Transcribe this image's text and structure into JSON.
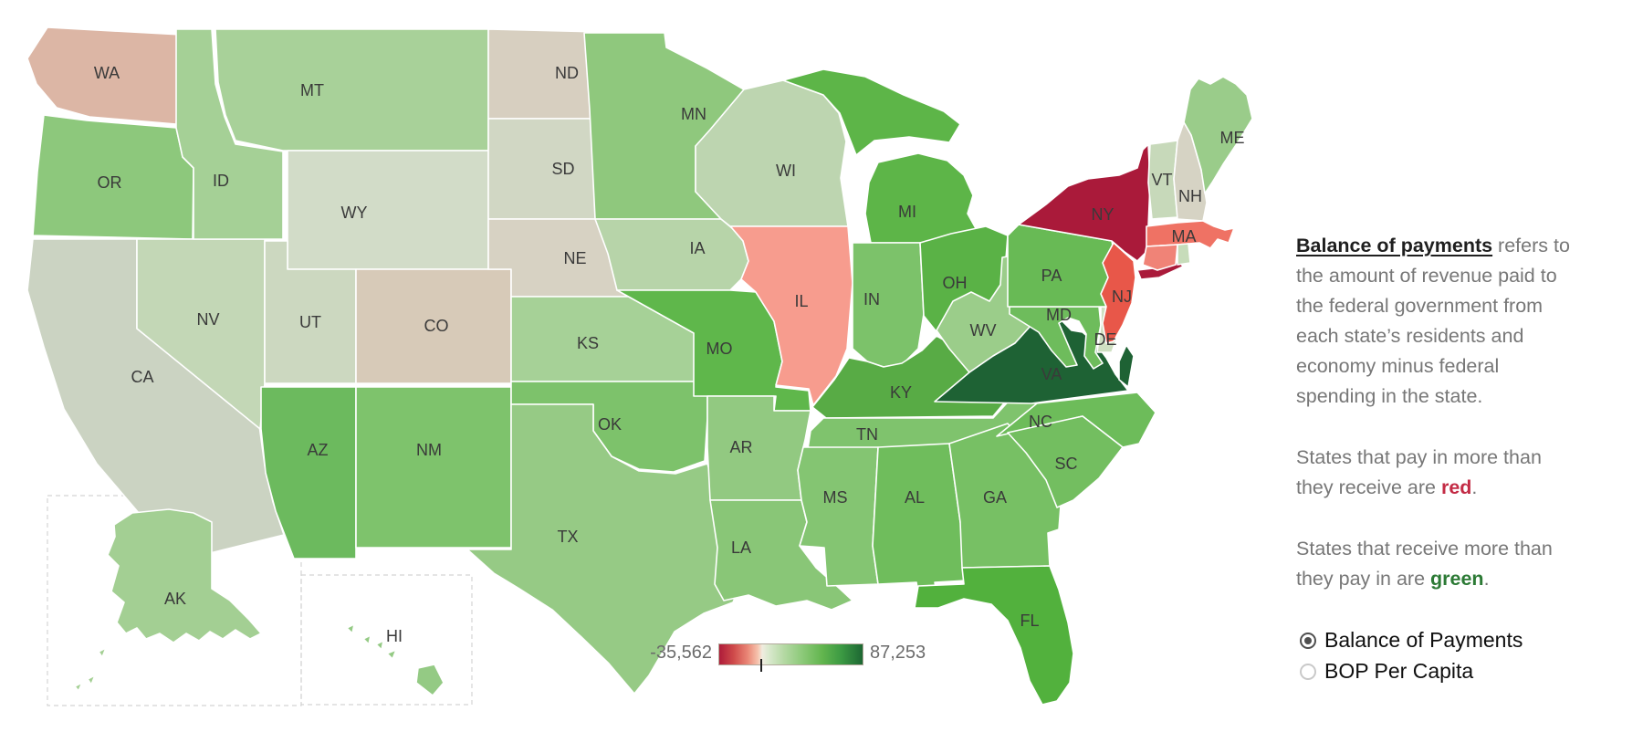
{
  "map": {
    "border_color": "#ffffff",
    "label_color": "#3a3a3a",
    "states": [
      {
        "abbr": "WA",
        "fill": "#dcb6a5"
      },
      {
        "abbr": "OR",
        "fill": "#8dc87c"
      },
      {
        "abbr": "CA",
        "fill": "#cbd3c2"
      },
      {
        "abbr": "NV",
        "fill": "#c3d7b6"
      },
      {
        "abbr": "ID",
        "fill": "#a5d096"
      },
      {
        "abbr": "MT",
        "fill": "#a8d199"
      },
      {
        "abbr": "WY",
        "fill": "#d2dcc8"
      },
      {
        "abbr": "UT",
        "fill": "#ccd8c0"
      },
      {
        "abbr": "CO",
        "fill": "#d7cab8"
      },
      {
        "abbr": "AZ",
        "fill": "#6cba5e"
      },
      {
        "abbr": "NM",
        "fill": "#7ec36c"
      },
      {
        "abbr": "ND",
        "fill": "#d7cfc0"
      },
      {
        "abbr": "SD",
        "fill": "#d1d7c4"
      },
      {
        "abbr": "NE",
        "fill": "#d7d2c3"
      },
      {
        "abbr": "KS",
        "fill": "#a6d197"
      },
      {
        "abbr": "OK",
        "fill": "#7dc26b"
      },
      {
        "abbr": "TX",
        "fill": "#96ca85"
      },
      {
        "abbr": "MN",
        "fill": "#8fc87d"
      },
      {
        "abbr": "IA",
        "fill": "#b7d4a9"
      },
      {
        "abbr": "MO",
        "fill": "#5fb74b"
      },
      {
        "abbr": "AR",
        "fill": "#92c981"
      },
      {
        "abbr": "LA",
        "fill": "#89c677"
      },
      {
        "abbr": "WI",
        "fill": "#bdd5b0"
      },
      {
        "abbr": "IL",
        "fill": "#f79c8e"
      },
      {
        "abbr": "MI",
        "fill": "#5db548"
      },
      {
        "abbr": "IN",
        "fill": "#7cc26a"
      },
      {
        "abbr": "OH",
        "fill": "#5ab246"
      },
      {
        "abbr": "KY",
        "fill": "#58ab45"
      },
      {
        "abbr": "TN",
        "fill": "#7fc36d"
      },
      {
        "abbr": "MS",
        "fill": "#84c572"
      },
      {
        "abbr": "AL",
        "fill": "#6fbd5c"
      },
      {
        "abbr": "GA",
        "fill": "#77c064"
      },
      {
        "abbr": "FL",
        "fill": "#52b13d"
      },
      {
        "abbr": "WV",
        "fill": "#9bcd8a"
      },
      {
        "abbr": "VA",
        "fill": "#1e6234"
      },
      {
        "abbr": "NC",
        "fill": "#6dbc5a"
      },
      {
        "abbr": "SC",
        "fill": "#73be60"
      },
      {
        "abbr": "MD",
        "fill": "#6ebc5c"
      },
      {
        "abbr": "DE",
        "fill": "#cfe0c2"
      },
      {
        "abbr": "PA",
        "fill": "#68ba55"
      },
      {
        "abbr": "NJ",
        "fill": "#e85749"
      },
      {
        "abbr": "NY",
        "fill": "#aa1a3a"
      },
      {
        "abbr": "VT",
        "fill": "#c7d9ba"
      },
      {
        "abbr": "NH",
        "fill": "#d6d3c4"
      },
      {
        "abbr": "MA",
        "fill": "#ef7264"
      },
      {
        "abbr": "CT",
        "fill": "#f08377"
      },
      {
        "abbr": "RI",
        "fill": "#c7dcba"
      },
      {
        "abbr": "ME",
        "fill": "#9acc8a"
      },
      {
        "abbr": "AK",
        "fill": "#a3cf93"
      },
      {
        "abbr": "HI",
        "fill": "#94ca84"
      }
    ]
  },
  "legend": {
    "min_label": "-35,562",
    "max_label": "87,253",
    "tick_percent": 28.9,
    "border_color": "#b3aa9d",
    "stops": [
      [
        "0%",
        "#ae1c3a"
      ],
      [
        "10%",
        "#cf4a4a"
      ],
      [
        "20%",
        "#ea8877"
      ],
      [
        "27%",
        "#f6c4ae"
      ],
      [
        "30%",
        "#f1ece0"
      ],
      [
        "34%",
        "#dcead0"
      ],
      [
        "45%",
        "#b5d9a4"
      ],
      [
        "58%",
        "#8cc979"
      ],
      [
        "72%",
        "#62b54e"
      ],
      [
        "85%",
        "#3c9a43"
      ],
      [
        "100%",
        "#1d6733"
      ]
    ]
  },
  "sidebar": {
    "paragraphs": [
      {
        "name": "definition-paragraph",
        "segments": [
          {
            "t": "Balance of payments",
            "lead": true
          },
          {
            "t": " refers to",
            "br": true
          },
          {
            "t": "the amount of revenue paid to",
            "br": true
          },
          {
            "t": "the federal  government from",
            "br": true
          },
          {
            "t": "each state’s residents and",
            "br": true
          },
          {
            "t": "economy minus federal",
            "br": true
          },
          {
            "t": "spending in the state."
          }
        ]
      },
      {
        "name": "red-note-paragraph",
        "segments": [
          {
            "t": "States that pay in more than",
            "br": true
          },
          {
            "t": "they receive are "
          },
          {
            "t": "red",
            "bold": true,
            "color": "#c32b45"
          },
          {
            "t": "."
          }
        ]
      },
      {
        "name": "green-note-paragraph",
        "segments": [
          {
            "t": "States that receive more than",
            "br": true
          },
          {
            "t": "they pay in are "
          },
          {
            "t": "green",
            "bold": true,
            "color": "#2c7a35"
          },
          {
            "t": "."
          }
        ]
      }
    ]
  },
  "controls": {
    "options": [
      {
        "label": "Balance of Payments",
        "selected": true
      },
      {
        "label": "BOP Per Capita",
        "selected": false
      }
    ]
  },
  "chart_data": {
    "type": "heatmap",
    "subtype": "us-state-choropleth",
    "measure": "Balance of Payments",
    "scale_min": -35562,
    "scale_max": 87253,
    "legend_labels": [
      "-35,562",
      "87,253"
    ],
    "color_scale": "diverging red (pay in more) to green (receive more)",
    "darkest_red_state": "NY",
    "darkest_green_state": "VA"
  }
}
